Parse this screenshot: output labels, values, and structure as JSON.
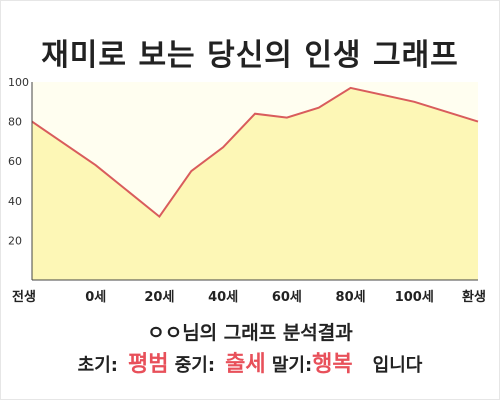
{
  "title": "재미로 보는 당신의 인생 그래프",
  "summary": {
    "heading": "ㅇㅇ님의 그래프 분석결과",
    "early_label": "초기:",
    "early_value": "평범",
    "middle_label": "중기:",
    "middle_value": "출세",
    "late_label": "말기:",
    "late_value": "행복",
    "suffix": "입니다"
  },
  "colors": {
    "line": "#d95c5c",
    "fill": "#fdf7b6",
    "highlight": "#e8505a",
    "plot_bg": "#fffef0"
  },
  "chart_data": {
    "type": "area",
    "title": "재미로 보는 당신의 인생 그래프",
    "xlabel": "",
    "ylabel": "",
    "x_tick_labels": [
      "전생",
      "0세",
      "20세",
      "40세",
      "60세",
      "80세",
      "100세",
      "환생"
    ],
    "y_ticks": [
      20,
      40,
      60,
      80,
      100
    ],
    "ylim": [
      0,
      100
    ],
    "grid": false,
    "x": [
      -20,
      0,
      20,
      30,
      40,
      50,
      60,
      70,
      80,
      100,
      120
    ],
    "values": [
      80,
      58,
      32,
      55,
      67,
      84,
      82,
      87,
      97,
      90,
      80
    ]
  }
}
